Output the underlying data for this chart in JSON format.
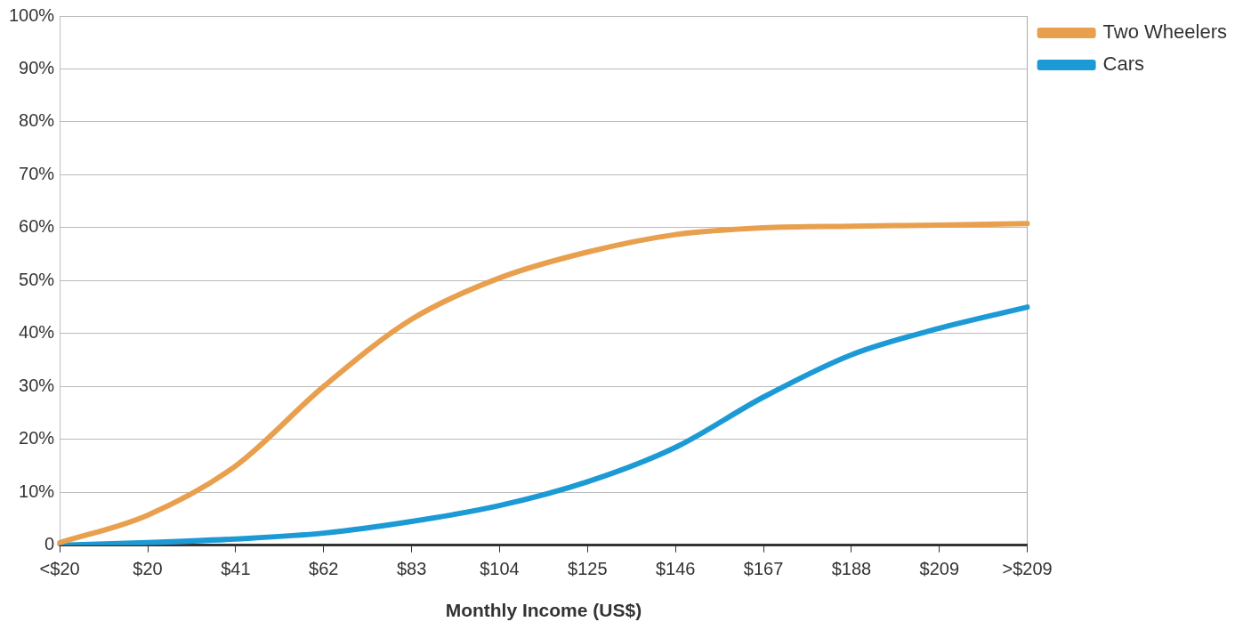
{
  "chart_data": {
    "type": "line",
    "xlabel": "Monthly Income (US$)",
    "categories": [
      "<$20",
      "$20",
      "$41",
      "$62",
      "$83",
      "$104",
      "$125",
      "$146",
      "$167",
      "$188",
      "$209",
      ">$209"
    ],
    "series": [
      {
        "name": "Two Wheelers",
        "color": "#e8a04e",
        "values": [
          0.5,
          5.7,
          15,
          30,
          42.7,
          50.5,
          55.4,
          58.7,
          60,
          60.3,
          60.5,
          60.8
        ]
      },
      {
        "name": "Cars",
        "color": "#1c9ad6",
        "values": [
          0,
          0.5,
          1.2,
          2.3,
          4.5,
          7.5,
          12,
          18.5,
          28,
          36,
          41,
          45
        ]
      }
    ],
    "ylim": [
      0,
      100
    ],
    "yticks": [
      {
        "value": 0,
        "label": "0"
      },
      {
        "value": 10,
        "label": "10%"
      },
      {
        "value": 20,
        "label": "20%"
      },
      {
        "value": 30,
        "label": "30%"
      },
      {
        "value": 40,
        "label": "40%"
      },
      {
        "value": 50,
        "label": "50%"
      },
      {
        "value": 60,
        "label": "60%"
      },
      {
        "value": 70,
        "label": "70%"
      },
      {
        "value": 80,
        "label": "80%"
      },
      {
        "value": 90,
        "label": "90%"
      },
      {
        "value": 100,
        "label": "100%"
      }
    ],
    "grid": "y",
    "legend": "top right",
    "marker": "none",
    "line_style": "solid"
  }
}
